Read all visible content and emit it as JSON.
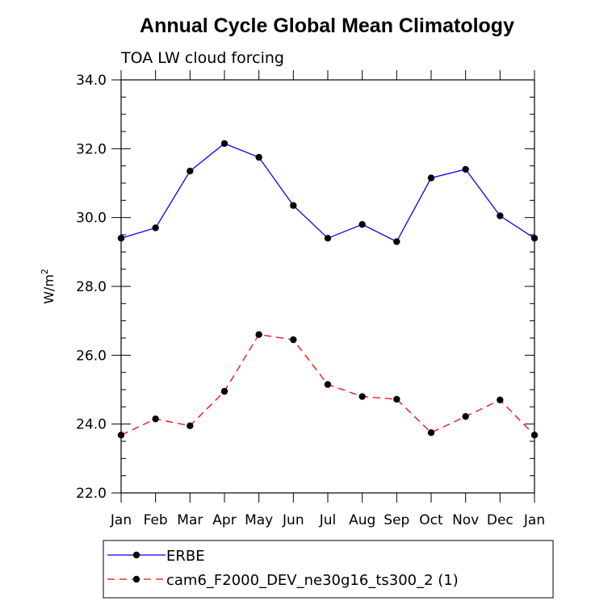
{
  "chart_data": {
    "type": "line",
    "title": "Annual Cycle Global Mean Climatology",
    "subtitle": "TOA LW cloud forcing",
    "ylabel": "W/m",
    "ylabel_sup": "2",
    "xlabel": "",
    "categories": [
      "Jan",
      "Feb",
      "Mar",
      "Apr",
      "May",
      "Jun",
      "Jul",
      "Aug",
      "Sep",
      "Oct",
      "Nov",
      "Dec",
      "Jan"
    ],
    "ylim": [
      22.0,
      34.0
    ],
    "yticks": [
      22.0,
      24.0,
      26.0,
      28.0,
      30.0,
      32.0,
      34.0
    ],
    "ytick_labels": [
      "22.0",
      "24.0",
      "26.0",
      "28.0",
      "30.0",
      "32.0",
      "34.0"
    ],
    "grid": false,
    "legend_position": "bottom",
    "series": [
      {
        "name": "ERBE",
        "color": "#0000ff",
        "line_style": "solid",
        "marker": "filled-circle",
        "values": [
          29.4,
          29.7,
          31.35,
          32.15,
          31.75,
          30.35,
          29.4,
          29.8,
          29.3,
          31.15,
          31.4,
          30.05,
          29.4
        ]
      },
      {
        "name": "cam6_F2000_DEV_ne30g16_ts300_2 (1)",
        "color": "#ff0000",
        "line_style": "dashed",
        "marker": "filled-circle",
        "values": [
          23.68,
          24.15,
          23.95,
          24.95,
          26.6,
          26.45,
          25.15,
          24.8,
          24.72,
          23.75,
          24.22,
          24.7,
          23.68
        ]
      }
    ]
  }
}
